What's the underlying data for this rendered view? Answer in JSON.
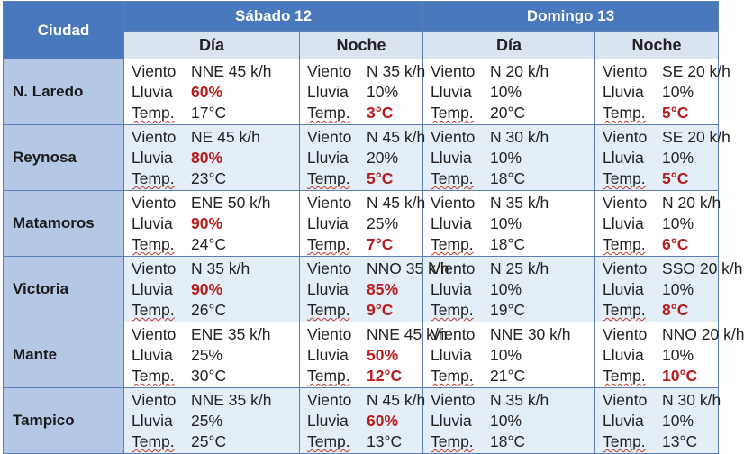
{
  "header": {
    "city_col": "Ciudad",
    "days": [
      {
        "name": "Sábado  12",
        "sub": [
          "Día",
          "Noche"
        ]
      },
      {
        "name": "Domingo 13",
        "sub": [
          "Día",
          "Noche"
        ]
      }
    ]
  },
  "labels": {
    "wind": "Viento",
    "rain": "Lluvia",
    "temp": "Temp."
  },
  "rows": [
    {
      "city": "N. Laredo",
      "cells": [
        {
          "wind": "NNE 45 k/h",
          "rain": "60%",
          "temp": "17°C",
          "rain_hi": true,
          "temp_hi": false
        },
        {
          "wind": "N 35 k/h",
          "rain": "10%",
          "temp": "3°C",
          "rain_hi": false,
          "temp_hi": true
        },
        {
          "wind": "N 20 k/h",
          "rain": "10%",
          "temp": "20°C",
          "rain_hi": false,
          "temp_hi": false
        },
        {
          "wind": "SE 20 k/h",
          "rain": "10%",
          "temp": "5°C",
          "rain_hi": false,
          "temp_hi": true
        }
      ]
    },
    {
      "city": "Reynosa",
      "cells": [
        {
          "wind": "NE 45 k/h",
          "rain": "80%",
          "temp": "23°C",
          "rain_hi": true,
          "temp_hi": false
        },
        {
          "wind": "N 45 k/h",
          "rain": "20%",
          "temp": "5°C",
          "rain_hi": false,
          "temp_hi": true
        },
        {
          "wind": "N 30 k/h",
          "rain": "10%",
          "temp": "18°C",
          "rain_hi": false,
          "temp_hi": false
        },
        {
          "wind": "SE 20 k/h",
          "rain": "10%",
          "temp": "5°C",
          "rain_hi": false,
          "temp_hi": true
        }
      ]
    },
    {
      "city": "Matamoros",
      "cells": [
        {
          "wind": "ENE 50 k/h",
          "rain": "90%",
          "temp": "24°C",
          "rain_hi": true,
          "temp_hi": false
        },
        {
          "wind": "N 45 k/h",
          "rain": "25%",
          "temp": "7°C",
          "rain_hi": false,
          "temp_hi": true
        },
        {
          "wind": "N 35 k/h",
          "rain": "10%",
          "temp": "18°C",
          "rain_hi": false,
          "temp_hi": false
        },
        {
          "wind": "N 20 k/h",
          "rain": "10%",
          "temp": "6°C",
          "rain_hi": false,
          "temp_hi": true
        }
      ]
    },
    {
      "city": "Victoria",
      "cells": [
        {
          "wind": "N 35 k/h",
          "rain": "90%",
          "temp": "26°C",
          "rain_hi": true,
          "temp_hi": false
        },
        {
          "wind": "NNO 35 k/h",
          "rain": "85%",
          "temp": "9°C",
          "rain_hi": true,
          "temp_hi": true
        },
        {
          "wind": "N 25 k/h",
          "rain": "10%",
          "temp": "19°C",
          "rain_hi": false,
          "temp_hi": false
        },
        {
          "wind": "SSO 20 k/h",
          "rain": "10%",
          "temp": "8°C",
          "rain_hi": false,
          "temp_hi": true
        }
      ]
    },
    {
      "city": "Mante",
      "cells": [
        {
          "wind": "ENE 35 k/h",
          "rain": "25%",
          "temp": "30°C",
          "rain_hi": false,
          "temp_hi": false
        },
        {
          "wind": "NNE 45 k/h",
          "rain": "50%",
          "temp": "12°C",
          "rain_hi": true,
          "temp_hi": true
        },
        {
          "wind": "NNE 30 k/h",
          "rain": "10%",
          "temp": "21°C",
          "rain_hi": false,
          "temp_hi": false
        },
        {
          "wind": "NNO 20 k/h",
          "rain": "10%",
          "temp": "10°C",
          "rain_hi": false,
          "temp_hi": true
        }
      ]
    },
    {
      "city": "Tampico",
      "cells": [
        {
          "wind": "NNE 35 k/h",
          "rain": "25%",
          "temp": "25°C",
          "rain_hi": false,
          "temp_hi": false
        },
        {
          "wind": "N 45 k/h",
          "rain": "60%",
          "temp": "13°C",
          "rain_hi": true,
          "temp_hi": false
        },
        {
          "wind": "N 35 k/h",
          "rain": "10%",
          "temp": "18°C",
          "rain_hi": false,
          "temp_hi": false
        },
        {
          "wind": "N 30 k/h",
          "rain": "10%",
          "temp": "13°C",
          "rain_hi": false,
          "temp_hi": false
        }
      ]
    }
  ],
  "colors": {
    "header": "#4a78bc",
    "subheader": "#dae4f1",
    "city": "#b4c8e6",
    "highlight": "#b81c1c",
    "alt_row": "#e4eef7"
  }
}
